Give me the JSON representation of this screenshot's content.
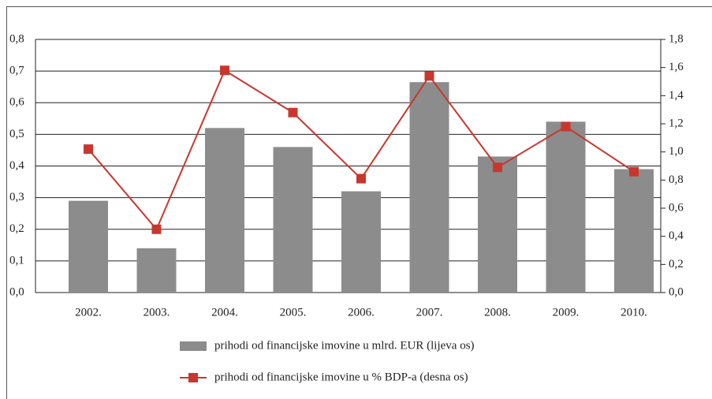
{
  "chart_data": {
    "type": "bar_line",
    "categories": [
      "2002.",
      "2003.",
      "2004.",
      "2005.",
      "2006.",
      "2007.",
      "2008.",
      "2009.",
      "2010."
    ],
    "series": [
      {
        "name": "prihodi od financijske imovine u mlrd. EUR (lijeva os)",
        "type": "bar",
        "color": "#8c8c8c",
        "axis": "y",
        "values": [
          0.29,
          0.14,
          0.52,
          0.46,
          0.32,
          0.665,
          0.43,
          0.54,
          0.39
        ]
      },
      {
        "name": "prihodi od financijske imovine u % BDP-a (desna os)",
        "type": "line",
        "color": "#c8372d",
        "axis": "y2",
        "values": [
          1.02,
          0.45,
          1.58,
          1.28,
          0.81,
          1.54,
          0.89,
          1.18,
          0.86
        ]
      }
    ],
    "ylim": [
      0,
      0.8
    ],
    "yticks": [
      {
        "value": 0,
        "label": "0,0"
      },
      {
        "value": 0.1,
        "label": "0,1"
      },
      {
        "value": 0.2,
        "label": "0,2"
      },
      {
        "value": 0.3,
        "label": "0,3"
      },
      {
        "value": 0.4,
        "label": "0,4"
      },
      {
        "value": 0.5,
        "label": "0,5"
      },
      {
        "value": 0.6,
        "label": "0,6"
      },
      {
        "value": 0.7,
        "label": "0,7"
      },
      {
        "value": 0.8,
        "label": "0,8"
      }
    ],
    "y2lim": [
      0,
      1.8
    ],
    "y2ticks": [
      {
        "value": 0,
        "label": "0,0"
      },
      {
        "value": 0.2,
        "label": "0,2"
      },
      {
        "value": 0.4,
        "label": "0,4"
      },
      {
        "value": 0.6,
        "label": "0,6"
      },
      {
        "value": 0.8,
        "label": "0,8"
      },
      {
        "value": 1.0,
        "label": "1,0"
      },
      {
        "value": 1.2,
        "label": "1,2"
      },
      {
        "value": 1.4,
        "label": "1,4"
      },
      {
        "value": 1.6,
        "label": "1,6"
      },
      {
        "value": 1.8,
        "label": "1,8"
      }
    ],
    "grid": true,
    "legend": "bottom"
  }
}
